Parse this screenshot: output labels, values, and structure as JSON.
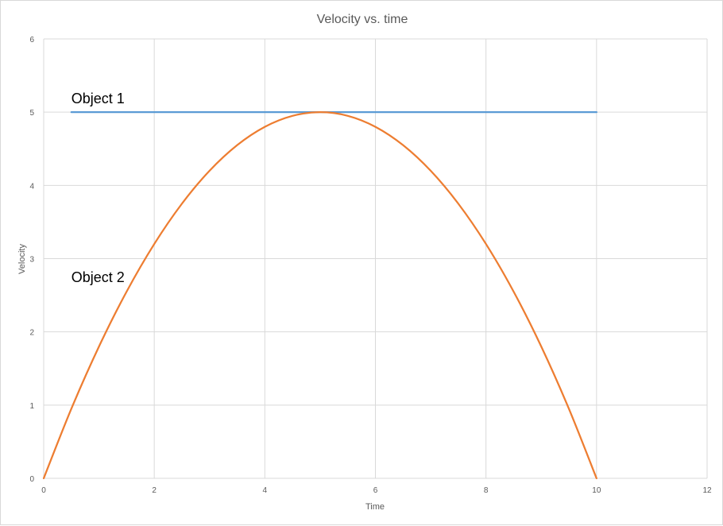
{
  "chart_data": {
    "type": "line",
    "title": "Velocity vs. time",
    "xlabel": "Time",
    "ylabel": "Velocity",
    "xlim": [
      0,
      12
    ],
    "ylim": [
      0,
      6
    ],
    "x_ticks": [
      0,
      2,
      4,
      6,
      8,
      10,
      12
    ],
    "y_ticks": [
      0,
      1,
      2,
      3,
      4,
      5,
      6
    ],
    "grid": true,
    "legend": "none",
    "series": [
      {
        "color": "#5b9bd5",
        "x": [
          0.5,
          1,
          2,
          3,
          4,
          5,
          6,
          7,
          8,
          9,
          10
        ],
        "y": [
          5,
          5,
          5,
          5,
          5,
          5,
          5,
          5,
          5,
          5,
          5
        ]
      },
      {
        "color": "#ed7d31",
        "x": [
          0,
          0.5,
          1,
          1.5,
          2,
          2.5,
          3,
          3.5,
          4,
          4.5,
          5,
          5.5,
          6,
          6.5,
          7,
          7.5,
          8,
          8.5,
          9,
          9.5,
          10
        ],
        "y": [
          0,
          0.95,
          1.8,
          2.55,
          3.2,
          3.75,
          4.2,
          4.55,
          4.8,
          4.95,
          5,
          4.95,
          4.8,
          4.55,
          4.2,
          3.75,
          3.2,
          2.55,
          1.8,
          0.95,
          0
        ]
      }
    ],
    "annotations": [
      {
        "text": "Object 1",
        "x": 0.5,
        "y": 5.12
      },
      {
        "text": "Object 2",
        "x": 0.5,
        "y": 2.68
      }
    ]
  }
}
